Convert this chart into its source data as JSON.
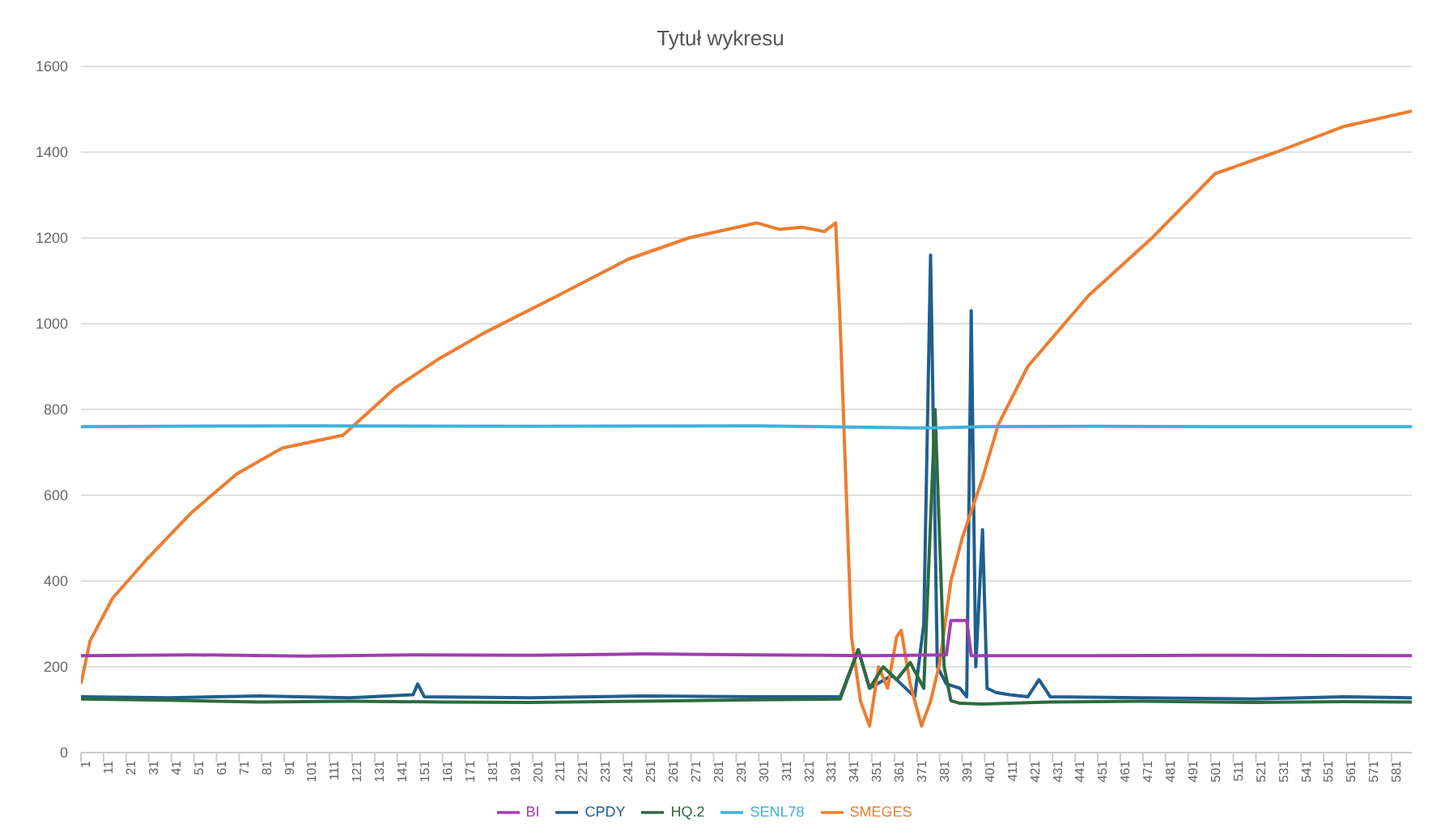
{
  "chart_data": {
    "type": "line",
    "title": "Tytuł wykresu",
    "xlim": [
      1,
      590
    ],
    "xticks": [
      1,
      11,
      21,
      31,
      41,
      51,
      61,
      71,
      81,
      91,
      101,
      111,
      121,
      131,
      141,
      151,
      161,
      171,
      181,
      191,
      201,
      211,
      221,
      231,
      241,
      251,
      261,
      271,
      281,
      291,
      301,
      311,
      321,
      331,
      341,
      351,
      361,
      371,
      381,
      391,
      401,
      411,
      421,
      431,
      441,
      451,
      461,
      471,
      481,
      491,
      501,
      511,
      521,
      531,
      541,
      551,
      561,
      571,
      581
    ],
    "ylim": [
      0,
      1600
    ],
    "yticks": [
      0,
      200,
      400,
      600,
      800,
      1000,
      1200,
      1400,
      1600
    ],
    "grid": "y",
    "legend": "bottom",
    "marker": "none",
    "line_style": "solid",
    "series": [
      {
        "name": "CPDY",
        "color": "#1f5f8f",
        "x": [
          1,
          40,
          80,
          120,
          148,
          150,
          153,
          200,
          250,
          300,
          337,
          345,
          350,
          360,
          370,
          374,
          377,
          380,
          384,
          390,
          393,
          395,
          397,
          400,
          402,
          406,
          412,
          420,
          425,
          430,
          470,
          520,
          560,
          590
        ],
        "values": [
          130,
          128,
          132,
          128,
          135,
          160,
          130,
          128,
          132,
          130,
          130,
          240,
          150,
          180,
          130,
          300,
          1160,
          200,
          160,
          150,
          130,
          1030,
          200,
          520,
          150,
          140,
          135,
          130,
          170,
          130,
          128,
          125,
          130,
          128
        ]
      },
      {
        "name": "SMEGES",
        "color": "#ed7d31",
        "x": [
          1,
          5,
          15,
          30,
          50,
          70,
          90,
          117,
          140,
          160,
          180,
          210,
          243,
          270,
          300,
          310,
          320,
          330,
          335,
          337,
          342,
          346,
          350,
          354,
          358,
          362,
          364,
          368,
          373,
          377,
          381,
          386,
          391,
          400,
          407,
          420,
          447,
          475,
          503,
          530,
          560,
          590
        ],
        "values": [
          160,
          260,
          360,
          450,
          560,
          650,
          710,
          740,
          850,
          920,
          980,
          1060,
          1150,
          1200,
          1235,
          1220,
          1225,
          1215,
          1235,
          1000,
          270,
          120,
          62,
          200,
          150,
          270,
          285,
          160,
          62,
          120,
          207,
          400,
          500,
          640,
          765,
          900,
          1066,
          1200,
          1350,
          1400,
          1460,
          1496
        ]
      },
      {
        "name": "HQ.2",
        "color": "#2e6b3e",
        "x": [
          1,
          40,
          80,
          120,
          160,
          200,
          250,
          300,
          337,
          345,
          350,
          356,
          362,
          368,
          374,
          379,
          381,
          383,
          386,
          390,
          400,
          430,
          470,
          520,
          560,
          590
        ],
        "values": [
          125,
          122,
          118,
          120,
          118,
          117,
          120,
          123,
          125,
          240,
          150,
          200,
          170,
          210,
          150,
          800,
          500,
          200,
          121,
          115,
          113,
          118,
          120,
          117,
          119,
          118
        ]
      },
      {
        "name": "SENL78",
        "color": "#3fb2dc",
        "x": [
          1,
          100,
          200,
          300,
          370,
          380,
          400,
          450,
          500,
          590
        ],
        "values": [
          760,
          762,
          761,
          762,
          757,
          757,
          760,
          761,
          760,
          760
        ]
      },
      {
        "name": "BI",
        "color": "#a23db2",
        "x": [
          1,
          50,
          100,
          150,
          200,
          250,
          300,
          350,
          384,
          386,
          393,
          395,
          450,
          500,
          590
        ],
        "values": [
          226,
          228,
          225,
          228,
          227,
          230,
          228,
          226,
          228,
          308,
          308,
          226,
          226,
          227,
          226
        ]
      }
    ]
  }
}
